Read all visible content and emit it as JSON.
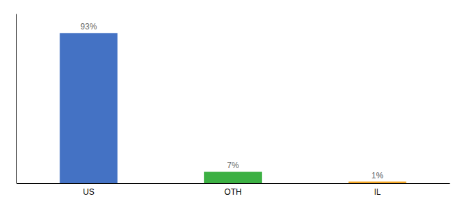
{
  "chart_data": {
    "type": "bar",
    "categories": [
      "US",
      "OTH",
      "IL"
    ],
    "values": [
      93,
      7,
      1
    ],
    "value_labels": [
      "93%",
      "7%",
      "1%"
    ],
    "colors": [
      "#4472c4",
      "#3cb043",
      "#f5a623"
    ],
    "ylim": [
      0,
      105
    ],
    "data_labels": true,
    "tick_labels": "x"
  }
}
